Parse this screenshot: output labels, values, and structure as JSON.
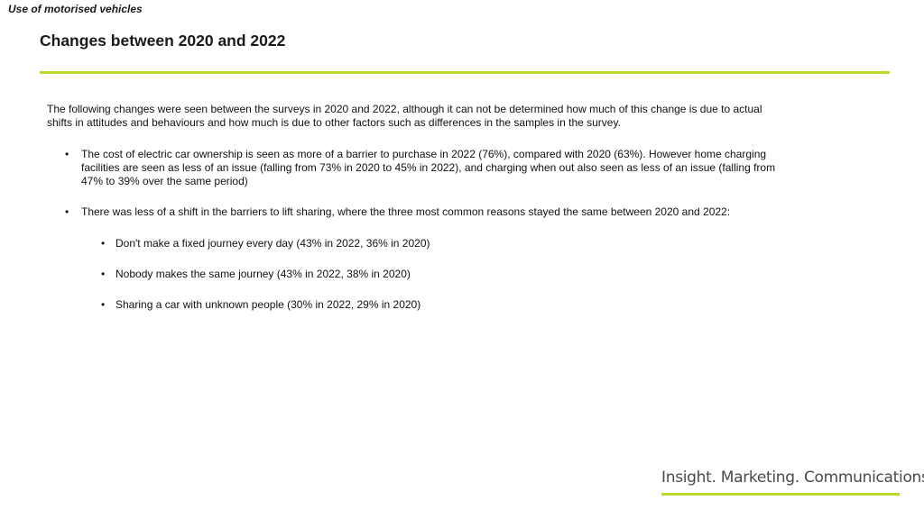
{
  "header": {
    "section_label": "Use of motorised vehicles",
    "title": "Changes between 2020 and 2022"
  },
  "content": {
    "intro": "The following changes were seen between the surveys in 2020 and 2022, although it can not be determined how much of this change is due to actual shifts in attitudes and behaviours and how much is due to other factors such as differences in the samples in the survey.",
    "bullet_symbol": "•",
    "bullets": [
      {
        "text": "The cost of electric car ownership is seen as more of a barrier to purchase in 2022 (76%), compared with 2020 (63%). However home charging facilities are seen as less of an issue (falling from 73% in 2020 to 45% in 2022), and charging when out also seen as less of an issue (falling from 47% to 39% over the same period)"
      },
      {
        "text": "There was less of a shift in the barriers to lift sharing, where the three most common reasons stayed the same between 2020 and 2022:",
        "sub_bullets": [
          "Don't make a fixed journey every day (43% in 2022, 36% in 2020)",
          "Nobody makes the same journey (43% in 2022, 38% in 2020)",
          "Sharing a car with unknown people (30% in 2022, 29% in 2020)"
        ]
      }
    ]
  },
  "footer": {
    "logo_text": "Insight. Marketing. Communications."
  },
  "colors": {
    "accent_green": "#bed72f",
    "text": "#111111",
    "logo_text": "#4a4a4a"
  }
}
